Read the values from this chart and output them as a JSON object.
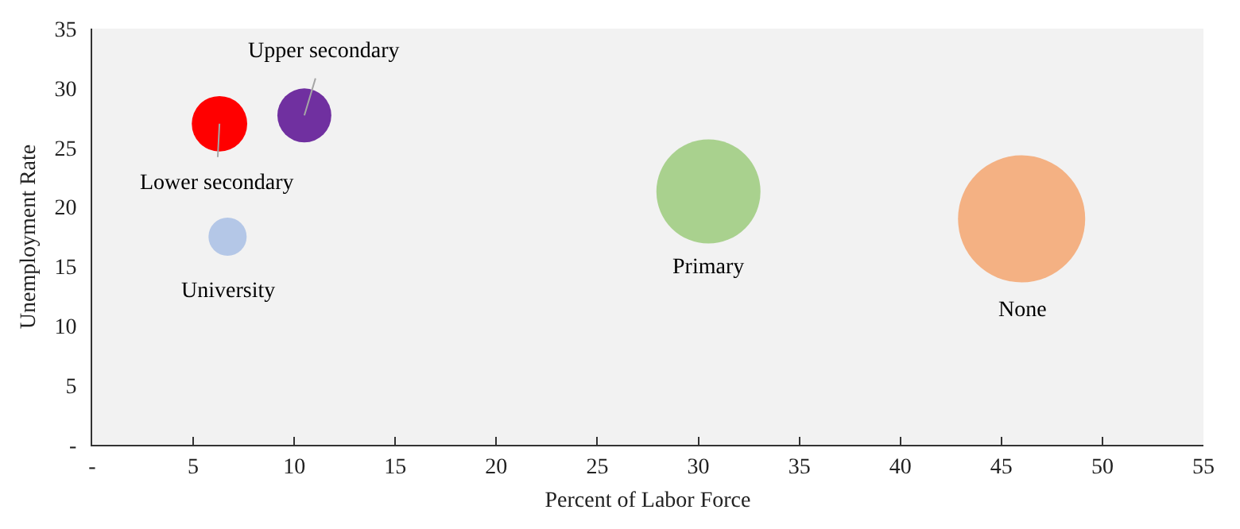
{
  "chart_data": {
    "type": "bubble",
    "xlabel": "Percent of Labor Force",
    "ylabel": "Unemployment Rate",
    "xlim": [
      0,
      55
    ],
    "xticks": [
      {
        "value": 0,
        "label": "-"
      },
      5,
      10,
      15,
      20,
      25,
      30,
      35,
      40,
      45,
      50,
      55
    ],
    "ylim": [
      0,
      35
    ],
    "yticks": [
      {
        "value": 0,
        "label": "-"
      },
      5,
      10,
      15,
      20,
      25,
      30,
      35
    ],
    "grid": false,
    "legend": false,
    "series": [
      {
        "name": "Lower secondary",
        "color": "#ff0000",
        "x": [
          6.3
        ],
        "values": [
          27
        ],
        "sizes": [
          0.19
        ]
      },
      {
        "name": "Upper secondary",
        "color": "#7030a0",
        "x": [
          10.5
        ],
        "values": [
          27.7
        ],
        "sizes": [
          0.18
        ]
      },
      {
        "name": "University",
        "color": "#b4c7e7",
        "x": [
          6.7
        ],
        "values": [
          17.5
        ],
        "sizes": [
          0.09
        ]
      },
      {
        "name": "Primary",
        "color": "#a9d18e",
        "x": [
          30.5
        ],
        "values": [
          21.3
        ],
        "sizes": [
          0.67
        ]
      },
      {
        "name": "None",
        "color": "#f4b183",
        "x": [
          46
        ],
        "values": [
          19
        ],
        "sizes": [
          1
        ]
      }
    ]
  }
}
